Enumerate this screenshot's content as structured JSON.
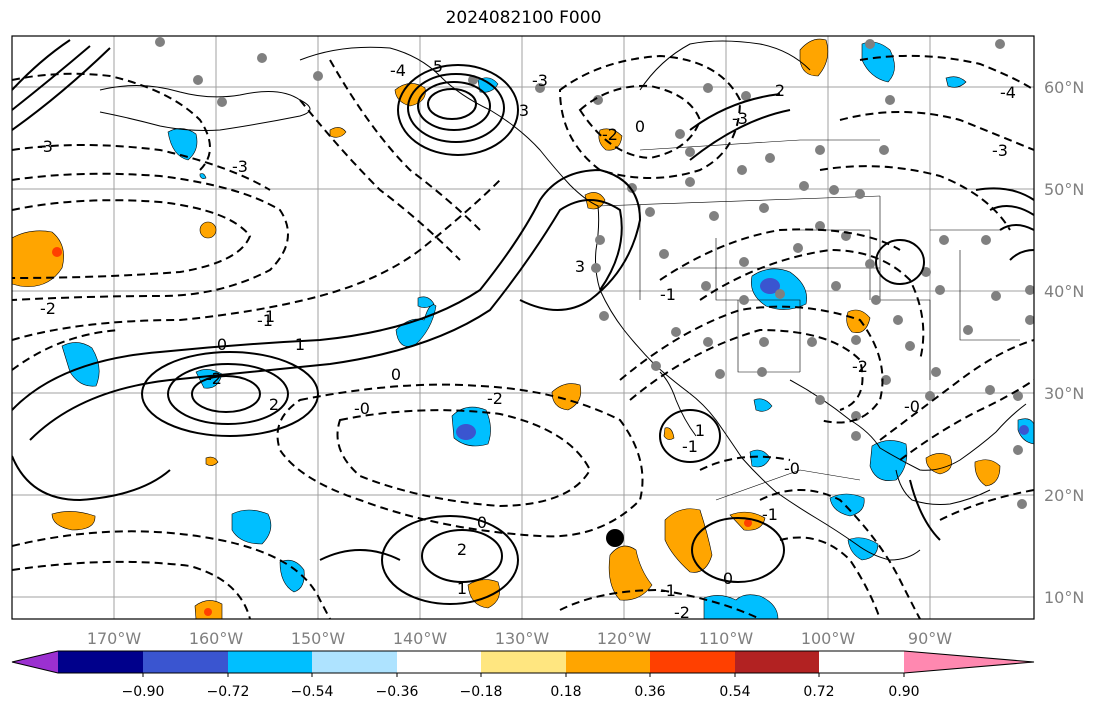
{
  "title": "2024082100 F000",
  "lon_labels": [
    "170°W",
    "160°W",
    "150°W",
    "140°W",
    "130°W",
    "120°W",
    "110°W",
    "100°W",
    "90°W"
  ],
  "lat_labels": [
    "60°N",
    "50°N",
    "40°N",
    "30°N",
    "20°N",
    "10°N"
  ],
  "colorbar": {
    "tick_labels": [
      "−0.90",
      "−0.72",
      "−0.54",
      "−0.36",
      "−0.18",
      "0.18",
      "0.36",
      "0.54",
      "0.72",
      "0.90"
    ],
    "colors": [
      "#9b30d0",
      "#00008b",
      "#3a55d0",
      "#00bfff",
      "#aee3ff",
      "#ffffff",
      "#ffe680",
      "#ffa500",
      "#ff4000",
      "#b22222",
      "#ff88b0"
    ],
    "extend": "both"
  },
  "contour_labels": [
    "-3",
    "-3",
    "-2",
    "-1",
    "0",
    "0",
    "1",
    "-2",
    "2",
    "-2",
    "-0",
    "0",
    "-1",
    "-2",
    "1",
    "2",
    "0",
    "-1",
    "1",
    "-0",
    "-1",
    "-2",
    "-3",
    "-4",
    "-3",
    "3",
    "5",
    "-4",
    "-3",
    "3",
    "2",
    "0",
    "1",
    "-2",
    "-1",
    "-0"
  ],
  "colors": {
    "positive_fill": "#ffa500",
    "positive_strong": "#ff4000",
    "negative_fill": "#00bfff",
    "negative_strong": "#3a55d0",
    "grid": "#a0a0a0",
    "coast": "#000000",
    "station": "#808080"
  }
}
